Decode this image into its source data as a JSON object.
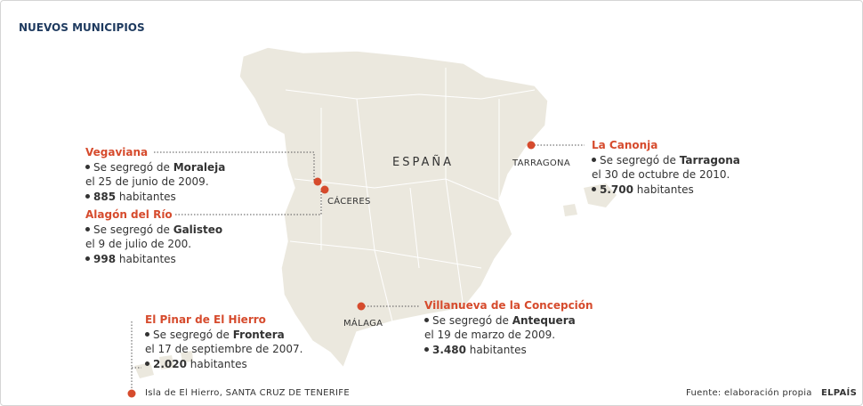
{
  "title": "NUEVOS MUNICIPIOS",
  "country_label": "ESPAÑA",
  "place_labels": {
    "caceres": "CÁCERES",
    "tarragona": "TARRAGONA",
    "malaga": "MÁLAGA",
    "hierro": "Isla de El Hierro, SANTA CRUZ DE TENERIFE"
  },
  "callouts": [
    {
      "name": "Vegaviana",
      "segregation": "Se segregó de ",
      "parent": "Moraleja",
      "date": "el 25 de junio de 2009.",
      "population": "885",
      "unit": " habitantes"
    },
    {
      "name": "Alagón del Río",
      "segregation": "Se segregó de ",
      "parent": "Galisteo",
      "date": "el 9 de julio de 200.",
      "population": "998",
      "unit": " habitantes"
    },
    {
      "name": "La Canonja",
      "segregation": "Se segregó de ",
      "parent": "Tarragona",
      "date": "el 30 de octubre de 2010.",
      "population": "5.700",
      "unit": " habitantes"
    },
    {
      "name": "Villanueva de la Concepción",
      "segregation": "Se segregó de ",
      "parent": "Antequera",
      "date": "el 19 de marzo de 2009.",
      "population": "3.480",
      "unit": " habitantes"
    },
    {
      "name": "El Pinar de El Hierro",
      "segregation": "Se segregó de ",
      "parent": "Frontera",
      "date": "el 17 de septiembre de 2007.",
      "population": "2.020",
      "unit": " habitantes"
    }
  ],
  "footer": {
    "source": "Fuente: elaboración propia",
    "brand": "ELPAÍS"
  }
}
